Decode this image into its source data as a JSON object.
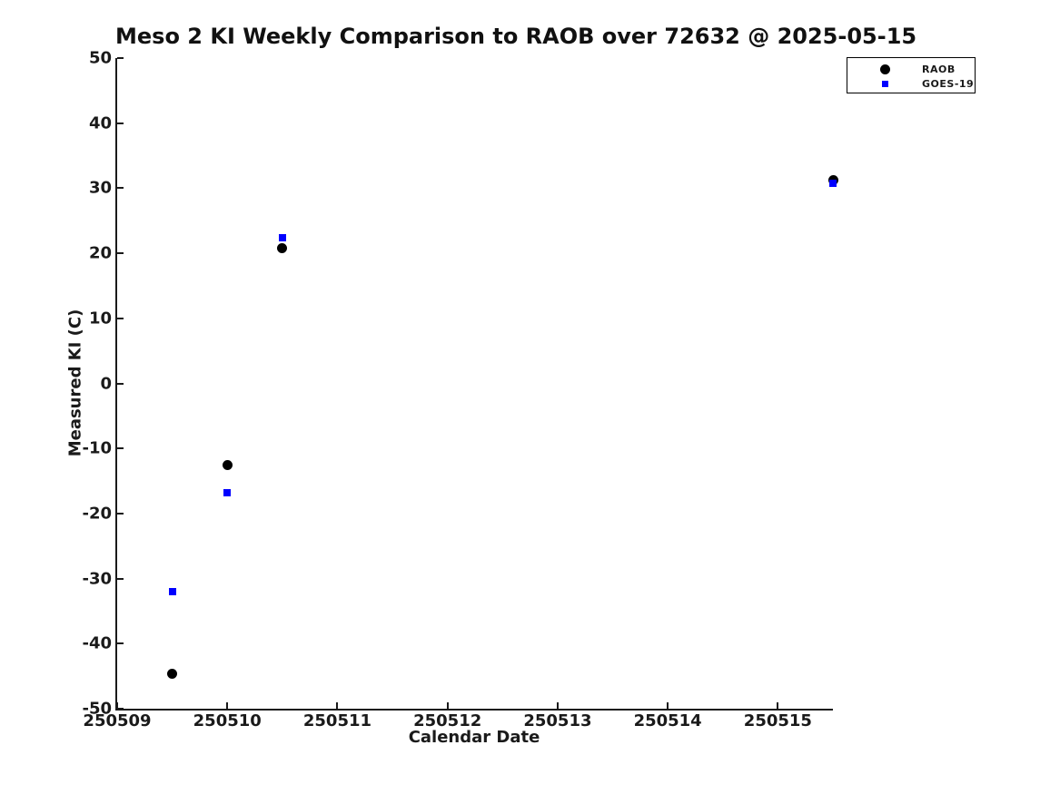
{
  "title": "Meso 2 KI Weekly Comparison to RAOB over 72632 @ 2025-05-15",
  "chart_data": {
    "type": "scatter",
    "title": "Meso 2 KI Weekly Comparison to RAOB over 72632 @ 2025-05-15",
    "xlabel": "Calendar Date",
    "ylabel": "Measured KI (C)",
    "xlim": [
      250509,
      250515.5
    ],
    "ylim": [
      -50,
      50
    ],
    "x_ticks": [
      250509,
      250510,
      250511,
      250512,
      250513,
      250514,
      250515
    ],
    "y_ticks": [
      50,
      40,
      30,
      20,
      10,
      0,
      -10,
      -20,
      -30,
      -40,
      -50
    ],
    "grid": false,
    "background": "#ffffff",
    "axis_color": "#1a1a1a",
    "legend": {
      "position": "top-right",
      "border_color": "#000000",
      "entries": [
        "RAOB",
        "GOES-19"
      ]
    },
    "series": [
      {
        "name": "RAOB",
        "marker": "circle",
        "color": "#000000",
        "marker_size": 11,
        "points": [
          {
            "x": 250509.5,
            "y": -44.6
          },
          {
            "x": 250510.0,
            "y": -12.6
          },
          {
            "x": 250510.5,
            "y": 20.8
          },
          {
            "x": 250515.5,
            "y": 31.2
          }
        ]
      },
      {
        "name": "GOES-19",
        "marker": "square",
        "color": "#0000ff",
        "marker_size": 8,
        "points": [
          {
            "x": 250509.5,
            "y": -32.0
          },
          {
            "x": 250510.0,
            "y": -16.8
          },
          {
            "x": 250510.5,
            "y": 22.4
          },
          {
            "x": 250515.5,
            "y": 30.7
          }
        ]
      }
    ]
  }
}
